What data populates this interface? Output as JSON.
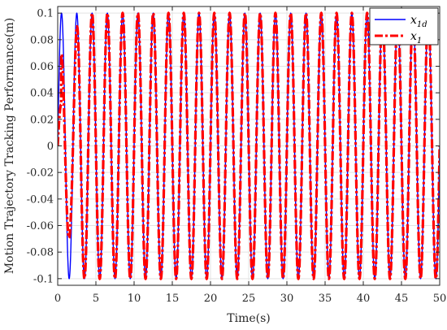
{
  "chart_data": {
    "type": "line",
    "xlabel": "Time(s)",
    "ylabel": "Motion Trajectory Tracking Performance(m)",
    "xlim": [
      0,
      50
    ],
    "ylim": [
      -0.105,
      0.105
    ],
    "x_ticks": [
      0,
      5,
      10,
      15,
      20,
      25,
      30,
      35,
      40,
      45,
      50
    ],
    "y_ticks": [
      -0.1,
      -0.08,
      -0.06,
      -0.04,
      -0.02,
      0,
      0.02,
      0.04,
      0.06,
      0.08,
      0.1
    ],
    "y_tick_labels": [
      "-0.1",
      "-0.08",
      "-0.06",
      "-0.04",
      "-0.02",
      "0",
      "0.02",
      "0.04",
      "0.06",
      "0.08",
      "0.1"
    ],
    "x_tick_labels": [
      "0",
      "5",
      "10",
      "15",
      "20",
      "25",
      "30",
      "35",
      "40",
      "45",
      "50"
    ],
    "grid": true,
    "legend_position": "top-right",
    "signal": {
      "form": "sinusoid",
      "amplitude": 0.1,
      "frequency_hz": 0.5,
      "x_start": 0,
      "x_end": 50,
      "initial_value": 0,
      "transient": {
        "x1_initial_peak": 0.031,
        "x1_initial_peak_time": 0.45,
        "x1_second_peak": 0.1,
        "x1_first_trough": -0.09
      }
    },
    "series": [
      {
        "name": "x_1d",
        "label_main": "x",
        "label_sub": "1d",
        "color": "#0000ff",
        "style": "solid"
      },
      {
        "name": "x_1",
        "label_main": "x",
        "label_sub": "1",
        "color": "#ff0000",
        "style": "dash-dot"
      }
    ]
  }
}
